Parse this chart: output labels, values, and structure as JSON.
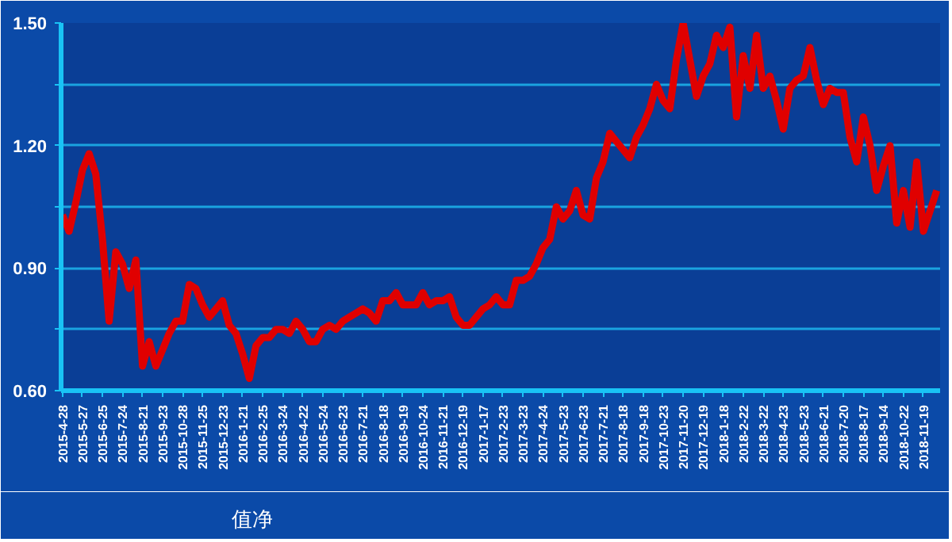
{
  "chart_data": {
    "type": "line",
    "categories": [
      "2015-4-28",
      null,
      null,
      "2015-5-27",
      null,
      null,
      "2015-6-25",
      null,
      null,
      "2015-7-24",
      null,
      null,
      "2015-8-21",
      null,
      null,
      "2015-9-23",
      null,
      null,
      "2015-10-28",
      null,
      null,
      "2015-11-25",
      null,
      null,
      "2015-12-23",
      null,
      null,
      "2016-1-21",
      null,
      null,
      "2016-2-25",
      null,
      null,
      "2016-3-24",
      null,
      null,
      "2016-4-22",
      null,
      null,
      "2016-5-24",
      null,
      null,
      "2016-6-23",
      null,
      null,
      "2016-7-21",
      null,
      null,
      "2016-8-18",
      null,
      null,
      "2016-9-19",
      null,
      null,
      "2016-10-24",
      null,
      null,
      "2016-11-21",
      null,
      null,
      "2016-12-19",
      null,
      null,
      "2017-1-17",
      null,
      null,
      "2017-2-23",
      null,
      null,
      "2017-3-23",
      null,
      null,
      "2017-4-24",
      null,
      null,
      "2017-5-23",
      null,
      null,
      "2017-6-23",
      null,
      null,
      "2017-7-21",
      null,
      null,
      "2017-8-18",
      null,
      null,
      "2017-9-18",
      null,
      null,
      "2017-10-23",
      null,
      null,
      "2017-11-20",
      null,
      null,
      "2017-12-19",
      null,
      null,
      "2018-1-18",
      null,
      null,
      "2018-2-22",
      null,
      null,
      "2018-3-22",
      null,
      null,
      "2018-4-23",
      null,
      null,
      "2018-5-23",
      null,
      null,
      "2018-6-21",
      null,
      null,
      "2018-7-20",
      null,
      null,
      "2018-8-17",
      null,
      null,
      "2018-9-14",
      null,
      null,
      "2018-10-22",
      null,
      null,
      "2018-11-19",
      null,
      null
    ],
    "series": [
      {
        "name": "值净",
        "color": "#e00000",
        "values": [
          1.03,
          0.99,
          1.06,
          1.14,
          1.18,
          1.13,
          0.97,
          0.77,
          0.94,
          0.91,
          0.85,
          0.92,
          0.66,
          0.72,
          0.66,
          0.7,
          0.74,
          0.77,
          0.77,
          0.86,
          0.85,
          0.81,
          0.78,
          0.8,
          0.82,
          0.76,
          0.74,
          0.69,
          0.63,
          0.71,
          0.73,
          0.73,
          0.75,
          0.75,
          0.74,
          0.77,
          0.75,
          0.72,
          0.72,
          0.75,
          0.76,
          0.75,
          0.77,
          0.78,
          0.79,
          0.8,
          0.79,
          0.77,
          0.82,
          0.82,
          0.84,
          0.81,
          0.81,
          0.81,
          0.84,
          0.81,
          0.82,
          0.82,
          0.83,
          0.78,
          0.76,
          0.76,
          0.78,
          0.8,
          0.81,
          0.83,
          0.81,
          0.81,
          0.87,
          0.87,
          0.88,
          0.91,
          0.95,
          0.97,
          1.05,
          1.02,
          1.04,
          1.09,
          1.03,
          1.02,
          1.12,
          1.16,
          1.23,
          1.21,
          1.19,
          1.17,
          1.22,
          1.25,
          1.29,
          1.35,
          1.31,
          1.29,
          1.41,
          1.5,
          1.41,
          1.32,
          1.37,
          1.4,
          1.47,
          1.44,
          1.49,
          1.27,
          1.42,
          1.34,
          1.47,
          1.34,
          1.37,
          1.31,
          1.24,
          1.34,
          1.36,
          1.37,
          1.44,
          1.36,
          1.3,
          1.34,
          1.33,
          1.33,
          1.22,
          1.16,
          1.27,
          1.2,
          1.09,
          1.15,
          1.2,
          1.01,
          1.09,
          1.0,
          1.16,
          0.99,
          1.04,
          1.09
        ]
      }
    ],
    "ylim": [
      0.6,
      1.5
    ],
    "yticks": [
      {
        "value": 0.6,
        "label": "0.60"
      },
      {
        "value": 0.75,
        "label": null
      },
      {
        "value": 0.9,
        "label": "0.90"
      },
      {
        "value": 1.05,
        "label": null
      },
      {
        "value": 1.2,
        "label": "1.20"
      },
      {
        "value": 1.35,
        "label": null
      },
      {
        "value": 1.5,
        "label": "1.50"
      }
    ],
    "grid": "y",
    "legend": "bottom left",
    "marker": "none",
    "line_style": "solid"
  }
}
